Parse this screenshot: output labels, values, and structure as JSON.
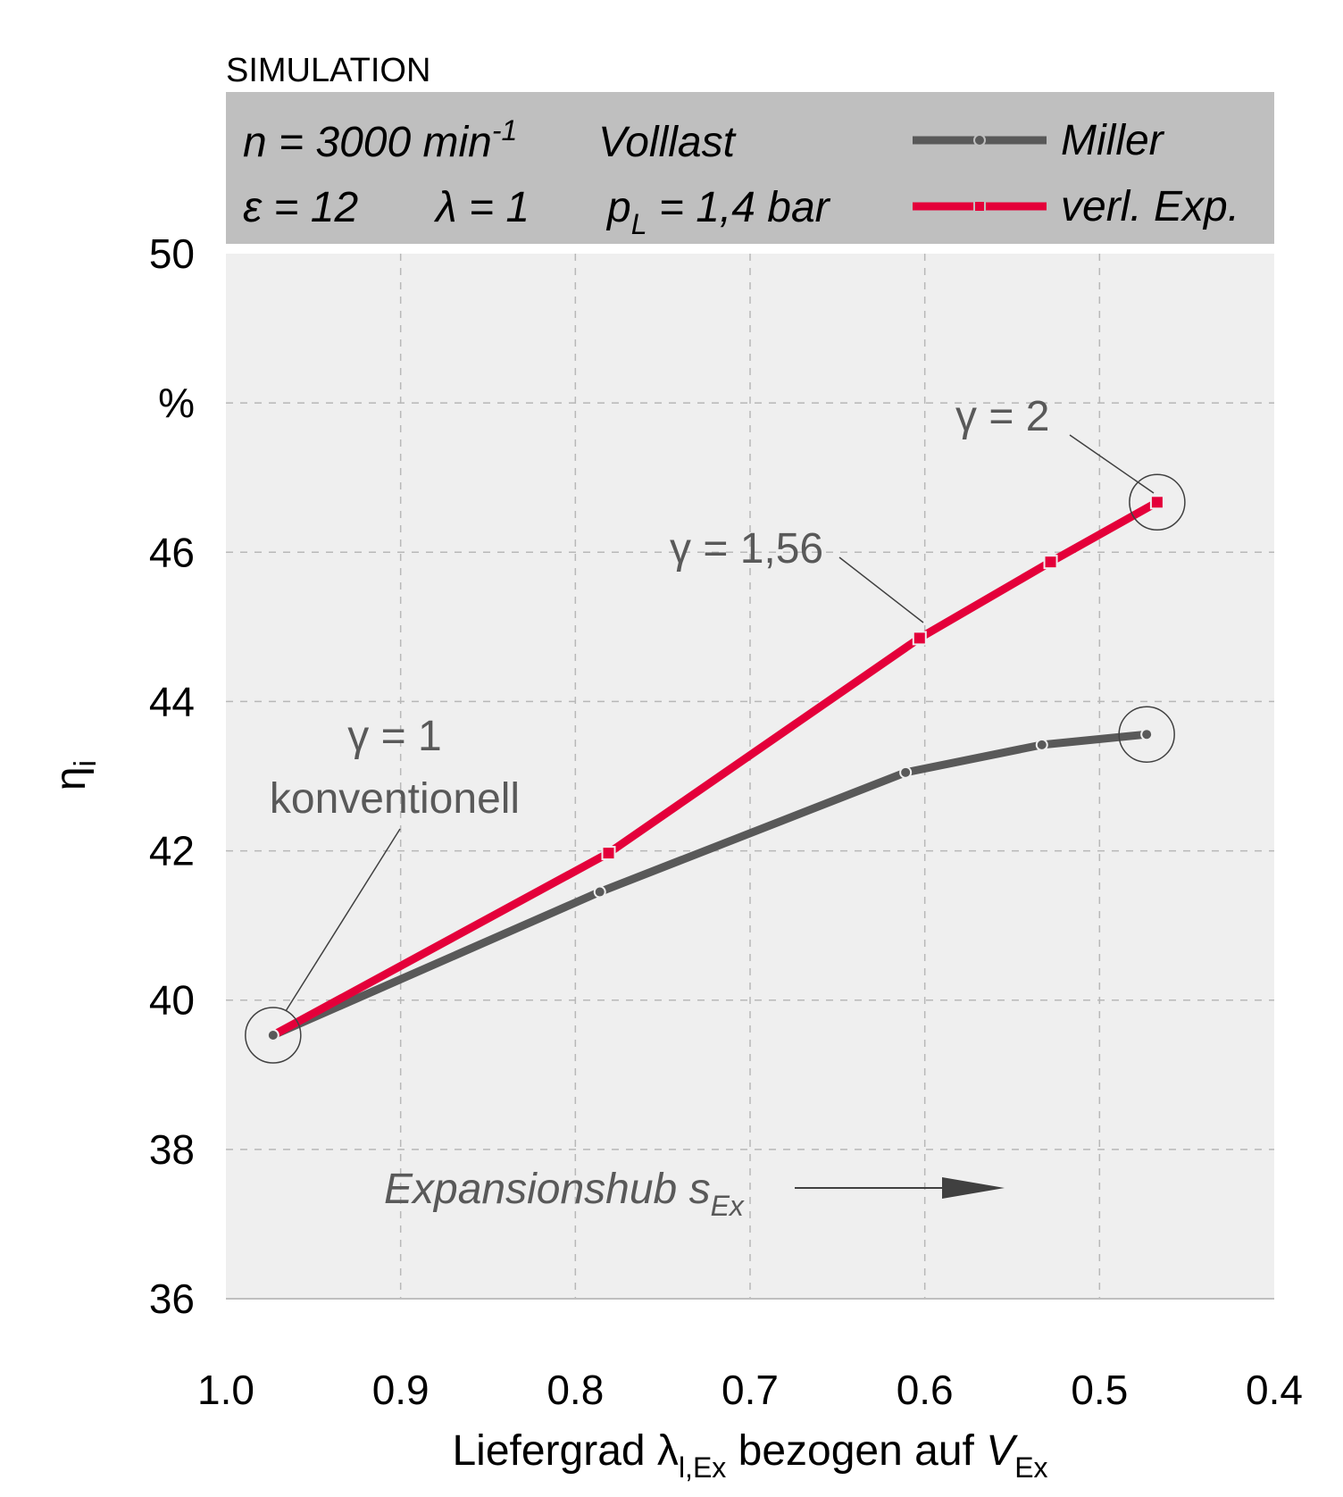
{
  "header": {
    "label": "SIMULATION",
    "condition_n": "n = 3000 min",
    "condition_n_exp": "-1",
    "condition_load": "Volllast",
    "condition_eps": "ε = 12",
    "condition_lambda": "λ = 1",
    "condition_pl_main": "p",
    "condition_pl_sub": "L",
    "condition_pl_val": " = 1,4 bar"
  },
  "chart_data": {
    "type": "line",
    "xlabel_main": "Liefergrad λ",
    "xlabel_sub": "l,Ex",
    "xlabel_mid": " bezogen auf ",
    "xlabel_var": "V",
    "xlabel_var_sub": "Ex",
    "ylabel_main": "η",
    "ylabel_sub": "i",
    "y_unit": "%",
    "xlim": [
      1.0,
      0.4
    ],
    "ylim": [
      36,
      50
    ],
    "x_reversed": true,
    "grid": true,
    "legend_position": "top-right",
    "x_ticks": [
      {
        "value": 1.0,
        "label": "1.0"
      },
      {
        "value": 0.9,
        "label": "0.9"
      },
      {
        "value": 0.8,
        "label": "0.8"
      },
      {
        "value": 0.7,
        "label": "0.7"
      },
      {
        "value": 0.6,
        "label": "0.6"
      },
      {
        "value": 0.5,
        "label": "0.5"
      },
      {
        "value": 0.4,
        "label": "0.4"
      }
    ],
    "y_ticks": [
      {
        "value": 36,
        "label": "36"
      },
      {
        "value": 38,
        "label": "38"
      },
      {
        "value": 40,
        "label": "40"
      },
      {
        "value": 42,
        "label": "42"
      },
      {
        "value": 44,
        "label": "44"
      },
      {
        "value": 46,
        "label": "46"
      },
      {
        "value": 48,
        "label": "%"
      },
      {
        "value": 50,
        "label": "50"
      }
    ],
    "series": [
      {
        "name": "Miller",
        "color": "#595959",
        "marker": "circle",
        "points": [
          [
            0.973,
            39.53
          ],
          [
            0.786,
            41.45
          ],
          [
            0.611,
            43.05
          ],
          [
            0.533,
            43.42
          ],
          [
            0.473,
            43.56
          ]
        ]
      },
      {
        "name": "verl. Exp.",
        "color": "#e4003a",
        "marker": "square",
        "points": [
          [
            0.973,
            39.53
          ],
          [
            0.781,
            41.97
          ],
          [
            0.603,
            44.85
          ],
          [
            0.528,
            45.87
          ],
          [
            0.467,
            46.67
          ]
        ]
      }
    ],
    "highlight_circles": [
      {
        "x": 0.973,
        "y": 39.53
      },
      {
        "x": 0.473,
        "y": 43.56
      },
      {
        "x": 0.467,
        "y": 46.67
      }
    ],
    "annotations": [
      {
        "id": "gamma-2",
        "text": "γ = 2",
        "point": [
          0.467,
          46.67
        ]
      },
      {
        "id": "gamma-156",
        "text": "γ = 1,56",
        "point": [
          0.603,
          44.85
        ]
      },
      {
        "id": "gamma-1",
        "text": "γ = 1",
        "line2": "konventionell",
        "point": [
          0.973,
          39.53
        ]
      }
    ],
    "arrow_label_main": "Expansionshub s",
    "arrow_label_sub": "Ex"
  }
}
